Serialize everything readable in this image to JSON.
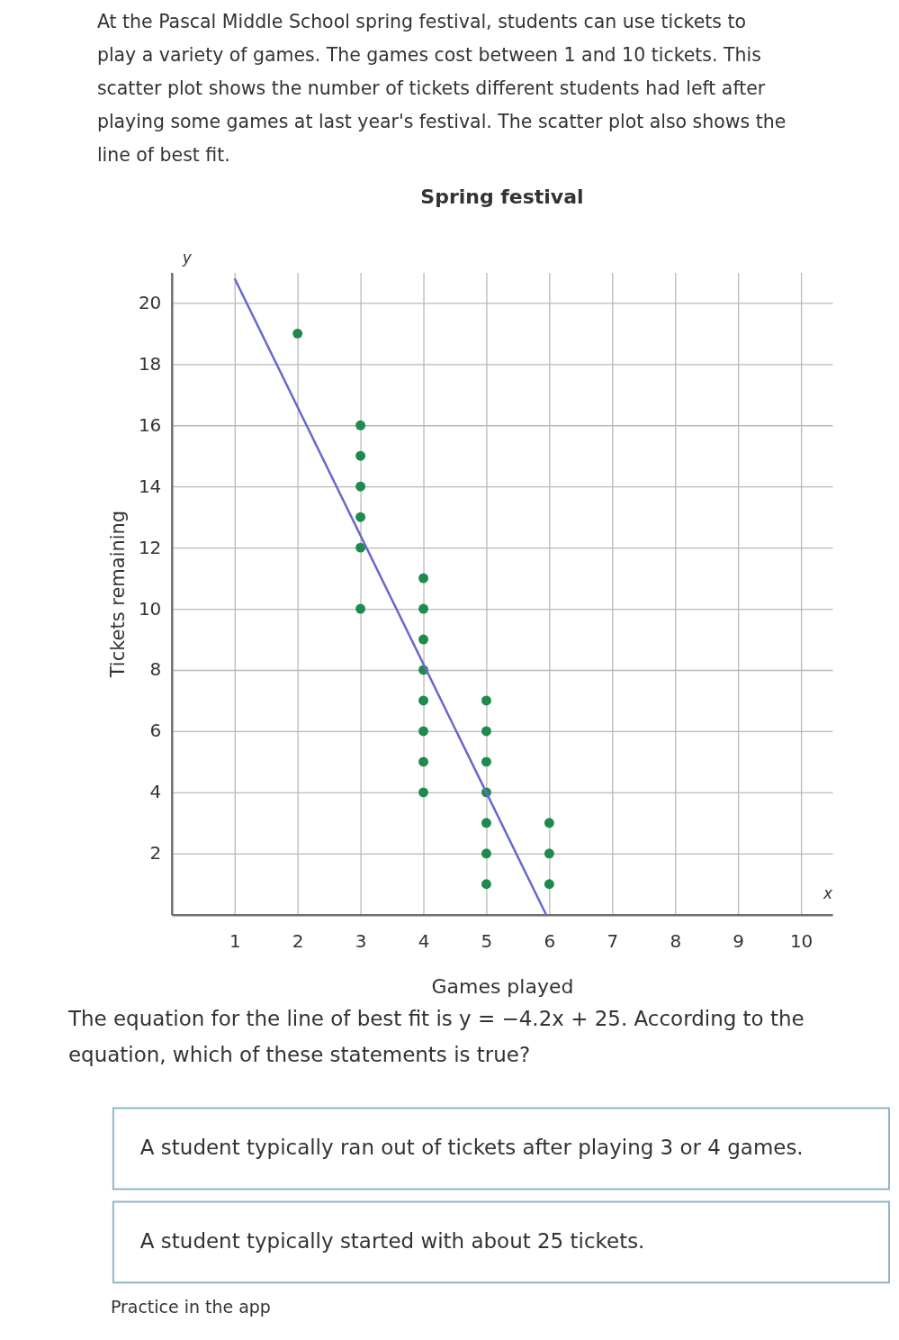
{
  "chart_data": {
    "type": "scatter",
    "title": "Spring festival",
    "xlabel": "Games played",
    "ylabel": "Tickets remaining",
    "xlim": [
      0,
      10.5
    ],
    "ylim": [
      0,
      21
    ],
    "xticks": [
      1,
      2,
      3,
      4,
      5,
      6,
      7,
      8,
      9,
      10
    ],
    "yticks": [
      2,
      4,
      6,
      8,
      10,
      12,
      14,
      16,
      18,
      20
    ],
    "grid": true,
    "series": [
      {
        "color": "#1f8a4d",
        "marker": "circle",
        "x": [
          2,
          3,
          3,
          3,
          3,
          3,
          3,
          4,
          4,
          4,
          4,
          4,
          4,
          4,
          4,
          5,
          5,
          5,
          5,
          5,
          5,
          5,
          6,
          6,
          6
        ],
        "values": [
          19,
          16,
          15,
          14,
          13,
          12,
          10,
          11,
          10,
          9,
          8,
          7,
          6,
          5,
          4,
          7,
          6,
          5,
          4,
          3,
          2,
          1,
          3,
          2,
          1
        ]
      },
      {
        "type": "line",
        "color": "#6767cf",
        "marker": "none",
        "line_style": "solid",
        "x": [
          1,
          5.95
        ],
        "values": [
          20.8,
          0
        ]
      }
    ],
    "annotations": [
      "At the Pascal Middle School spring festival, students can use tickets to play a variety of games. The games cost between 1 and 10 tickets. This scatter plot shows the number of tickets different students had left after playing some games at last year's festival. The scatter plot also shows the line of best fit.",
      "y",
      "x",
      "The equation for the line of best fit is y = −4.2x + 25. According to the equation, which of these statements is true?",
      "A student typically ran out of tickets after playing 3 or 4 games.",
      "A student typically started with about 25 tickets.",
      "Practice in the app"
    ]
  }
}
